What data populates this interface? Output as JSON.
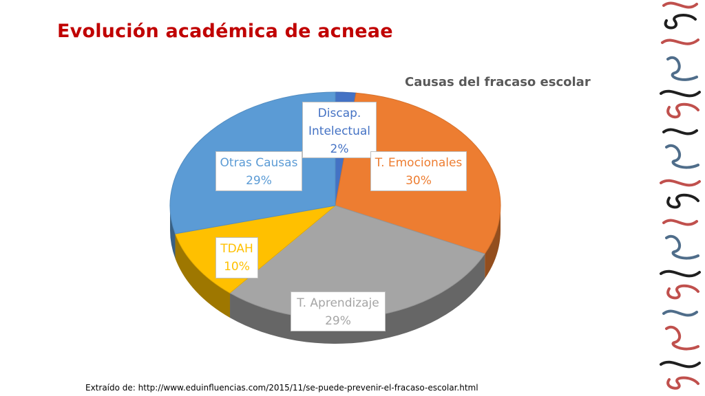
{
  "slide": {
    "title": "Evolución académica de acneae",
    "source_text": "Extraído de: http://www.eduinfluencias.com/2015/11/se-puede-prevenir-el-fracaso-escolar.html"
  },
  "chart_data": {
    "type": "pie",
    "title": "Causas del fracaso escolar",
    "categories": [
      "Discap. Intelectual",
      "T. Emocionales",
      "T. Aprendizaje",
      "TDAH",
      "Otras Causas"
    ],
    "values": [
      2,
      30,
      29,
      10,
      29
    ],
    "value_labels": [
      "2%",
      "30%",
      "29%",
      "10%",
      "29%"
    ],
    "colors": [
      "#4472c4",
      "#ed7d31",
      "#a5a5a5",
      "#ffc000",
      "#5b9bd5"
    ],
    "label_colors": [
      "#4472c4",
      "#ed7d31",
      "#a5a5a5",
      "#ffc000",
      "#5b9bd5"
    ],
    "style": "3d"
  }
}
